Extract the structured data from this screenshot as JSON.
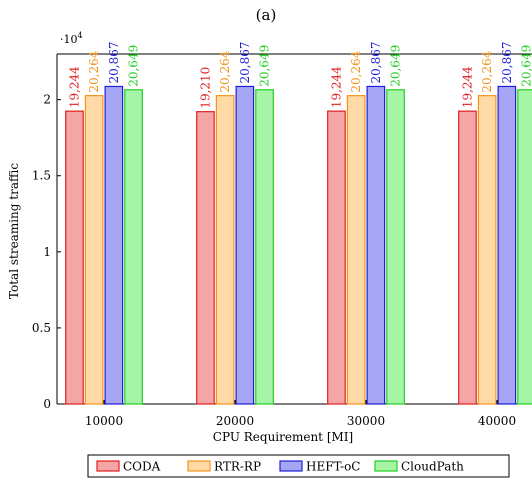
{
  "chart_data": {
    "type": "bar",
    "title": "(a)",
    "xlabel": "CPU Requirement [MI]",
    "ylabel": "Total streaming traffic",
    "y_multiplier_label": "·10^4",
    "categories": [
      "10000",
      "20000",
      "30000",
      "40000"
    ],
    "ylim": [
      0,
      23000
    ],
    "yticks": [
      0,
      5000,
      10000,
      15000,
      20000
    ],
    "ytick_labels": [
      "0",
      "0.5",
      "1",
      "1.5",
      "2"
    ],
    "grid": false,
    "legend_position": "bottom",
    "series": [
      {
        "name": "CODA",
        "values": [
          19244,
          19210,
          19244,
          19244
        ],
        "labels": [
          "19,244",
          "19,210",
          "19,244",
          "19,244"
        ],
        "fill": "#f4a6a6",
        "stroke": "#e01f1f"
      },
      {
        "name": "RTR-RP",
        "values": [
          20264,
          20264,
          20264,
          20264
        ],
        "labels": [
          "20,264",
          "20,264",
          "20,264",
          "20,264"
        ],
        "fill": "#ffd9a6",
        "stroke": "#f5941d"
      },
      {
        "name": "HEFT-oC",
        "values": [
          20867,
          20867,
          20867,
          20867
        ],
        "labels": [
          "20,867",
          "20,867",
          "20,867",
          "20,867"
        ],
        "fill": "#a6a6f4",
        "stroke": "#1f1fd8"
      },
      {
        "name": "CloudPath",
        "values": [
          20649,
          20649,
          20649,
          20649
        ],
        "labels": [
          "20,649",
          "20,649",
          "20,649",
          "20,649"
        ],
        "fill": "#a6f4a6",
        "stroke": "#22d022"
      }
    ]
  }
}
